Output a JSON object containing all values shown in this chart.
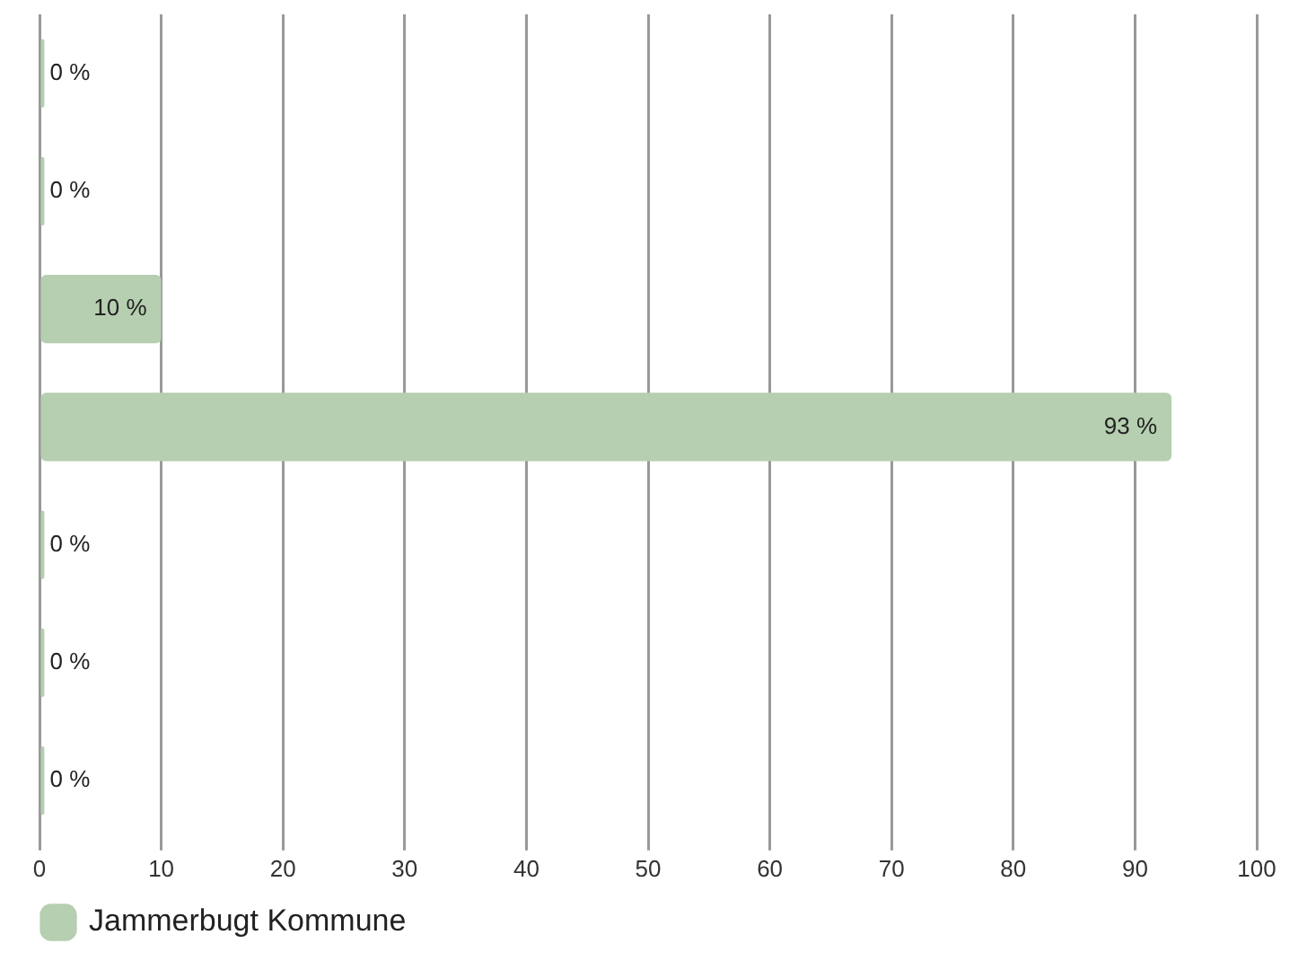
{
  "chart_data": {
    "type": "bar",
    "orientation": "horizontal",
    "categories": [
      null,
      null,
      null,
      null,
      null,
      null,
      null
    ],
    "series": [
      {
        "name": "Jammerbugt Kommune",
        "color": "#b5cfb0",
        "values": [
          0.4,
          0.4,
          10,
          93,
          0.4,
          0.4,
          0.4
        ],
        "value_labels": [
          "0 %",
          "0 %",
          "10 %",
          "93 %",
          "0 %",
          "0 %",
          "0 %"
        ]
      }
    ],
    "xlim": [
      0,
      100
    ],
    "xticks": [
      0,
      10,
      20,
      30,
      40,
      50,
      60,
      70,
      80,
      90,
      100
    ],
    "grid": "x",
    "legend": "bottom left",
    "tick_labels": "x"
  }
}
